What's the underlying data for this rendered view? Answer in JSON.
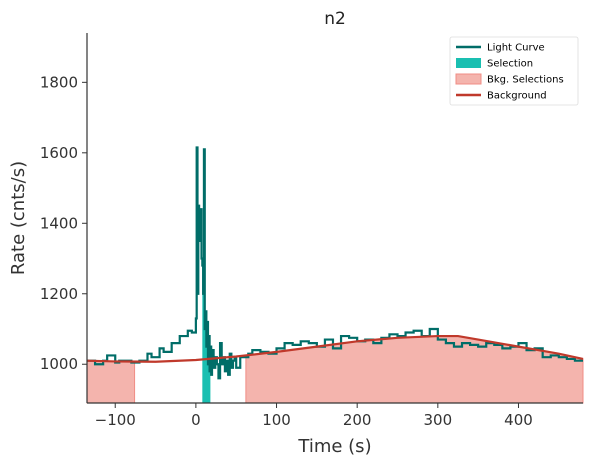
{
  "chart_data": {
    "type": "line",
    "title": "n2",
    "xlabel": "Time (s)",
    "ylabel": "Rate (cnts/s)",
    "xlim": [
      -135,
      480
    ],
    "ylim": [
      890,
      1940
    ],
    "xticks": [
      -100,
      0,
      100,
      200,
      300,
      400
    ],
    "yticks": [
      1000,
      1200,
      1400,
      1600,
      1800
    ],
    "grid": false,
    "legend_position": "top-right",
    "legend": [
      {
        "label": "Light Curve",
        "kind": "line",
        "color": "#006d68"
      },
      {
        "label": "Selection",
        "kind": "patch",
        "color": "#1abfb1"
      },
      {
        "label": "Bkg. Selections",
        "kind": "patch",
        "color": "#f4b4ad"
      },
      {
        "label": "Background",
        "kind": "line",
        "color": "#c0392b"
      }
    ],
    "series": [
      {
        "name": "Light Curve",
        "kind": "step",
        "color": "#006d68",
        "x": [
          -135,
          -125,
          -115,
          -110,
          -100,
          -95,
          -80,
          -70,
          -60,
          -55,
          -45,
          -40,
          -30,
          -20,
          -10,
          -5,
          0,
          1,
          2,
          3,
          4,
          5,
          6,
          7,
          8,
          9,
          10,
          11,
          12,
          13,
          14,
          15,
          16,
          17,
          18,
          19,
          20,
          21,
          22,
          24,
          26,
          28,
          30,
          32,
          34,
          36,
          38,
          40,
          42,
          44,
          46,
          48,
          50,
          55,
          60,
          65,
          70,
          80,
          90,
          100,
          110,
          120,
          130,
          140,
          150,
          160,
          170,
          180,
          190,
          200,
          210,
          220,
          230,
          240,
          250,
          260,
          270,
          280,
          290,
          300,
          310,
          320,
          330,
          340,
          350,
          360,
          370,
          380,
          390,
          400,
          410,
          420,
          430,
          440,
          450,
          460,
          470,
          480
        ],
        "y": [
          1010,
          1000,
          1010,
          1025,
          1005,
          1010,
          1005,
          1010,
          1030,
          1020,
          1045,
          1035,
          1060,
          1080,
          1095,
          1090,
          1130,
          1615,
          1200,
          1450,
          1350,
          1430,
          1440,
          1300,
          1280,
          1200,
          1610,
          1100,
          1150,
          1050,
          1120,
          1000,
          1080,
          980,
          1050,
          970,
          1010,
          1040,
          990,
          1020,
          1000,
          960,
          1060,
          1000,
          1020,
          980,
          1010,
          970,
          1030,
          990,
          1010,
          1020,
          990,
          1020,
          1020,
          1030,
          1040,
          1035,
          1030,
          1045,
          1060,
          1055,
          1065,
          1060,
          1050,
          1070,
          1045,
          1080,
          1075,
          1065,
          1070,
          1060,
          1075,
          1085,
          1080,
          1090,
          1095,
          1080,
          1100,
          1070,
          1060,
          1050,
          1060,
          1055,
          1050,
          1060,
          1055,
          1045,
          1050,
          1060,
          1040,
          1045,
          1020,
          1025,
          1020,
          1015,
          1010,
          1010
        ]
      },
      {
        "name": "Background",
        "kind": "line",
        "color": "#c0392b",
        "x": [
          -135,
          -100,
          -50,
          0,
          50,
          100,
          150,
          200,
          250,
          300,
          325,
          350,
          400,
          450,
          480
        ],
        "y": [
          1010,
          1008,
          1007,
          1012,
          1022,
          1035,
          1050,
          1065,
          1075,
          1080,
          1080,
          1070,
          1050,
          1030,
          1015
        ]
      }
    ],
    "selection": {
      "x_start": 8,
      "x_end": 18,
      "color": "#1abfb1"
    },
    "bkg_selections": [
      {
        "x_start": -135,
        "x_end": -76,
        "color": "#f4b4ad"
      },
      {
        "x_start": 62,
        "x_end": 480,
        "color": "#f4b4ad"
      }
    ]
  }
}
